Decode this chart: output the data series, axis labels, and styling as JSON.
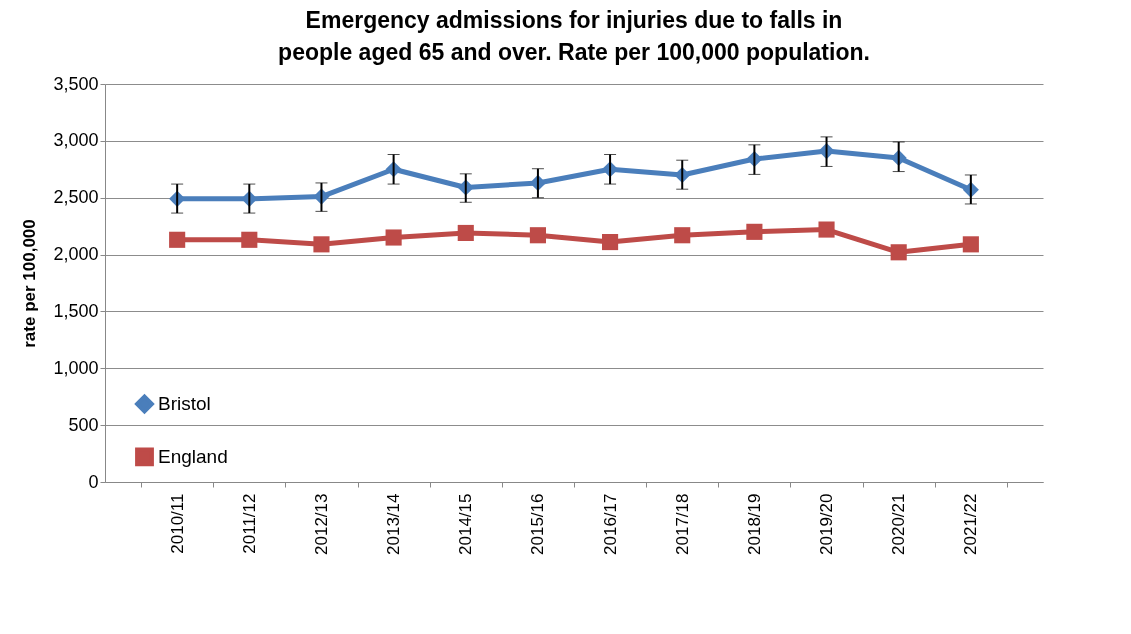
{
  "chart_data": {
    "type": "line",
    "title": "Emergency admissions for injuries due to falls in people aged 65 and over. Rate per 100,000 population.",
    "ylabel": "rate per 100,000",
    "categories": [
      "2010/11",
      "2011/12",
      "2012/13",
      "2013/14",
      "2014/15",
      "2015/16",
      "2016/17",
      "2017/18",
      "2018/19",
      "2019/20",
      "2020/21",
      "2021/22"
    ],
    "series": [
      {
        "name": "Bristol",
        "color": "#4a7ebb",
        "marker": "diamond",
        "values": [
          2490,
          2490,
          2510,
          2750,
          2590,
          2630,
          2750,
          2700,
          2840,
          2910,
          2850,
          2570
        ],
        "errors": [
          [
            2365,
            2620
          ],
          [
            2365,
            2620
          ],
          [
            2380,
            2630
          ],
          [
            2620,
            2880
          ],
          [
            2460,
            2710
          ],
          [
            2500,
            2755
          ],
          [
            2620,
            2880
          ],
          [
            2575,
            2830
          ],
          [
            2705,
            2965
          ],
          [
            2775,
            3035
          ],
          [
            2730,
            2990
          ],
          [
            2445,
            2700
          ]
        ]
      },
      {
        "name": "England",
        "color": "#be4b48",
        "marker": "square",
        "values": [
          2130,
          2130,
          2090,
          2150,
          2190,
          2170,
          2110,
          2170,
          2200,
          2220,
          2020,
          2090
        ]
      }
    ],
    "ylim": [
      0,
      3500
    ],
    "yticks": [
      0,
      500,
      {
        "value": 1000,
        "label": "1,000"
      },
      {
        "value": 1500,
        "label": "1,500"
      },
      {
        "value": 2000,
        "label": "2,000"
      },
      {
        "value": 2500,
        "label": "2,500"
      },
      {
        "value": 3000,
        "label": "3,000"
      },
      {
        "value": 3500,
        "label": "3,500"
      }
    ],
    "grid": "y",
    "legend": "bottom left",
    "line_style": "solid"
  }
}
